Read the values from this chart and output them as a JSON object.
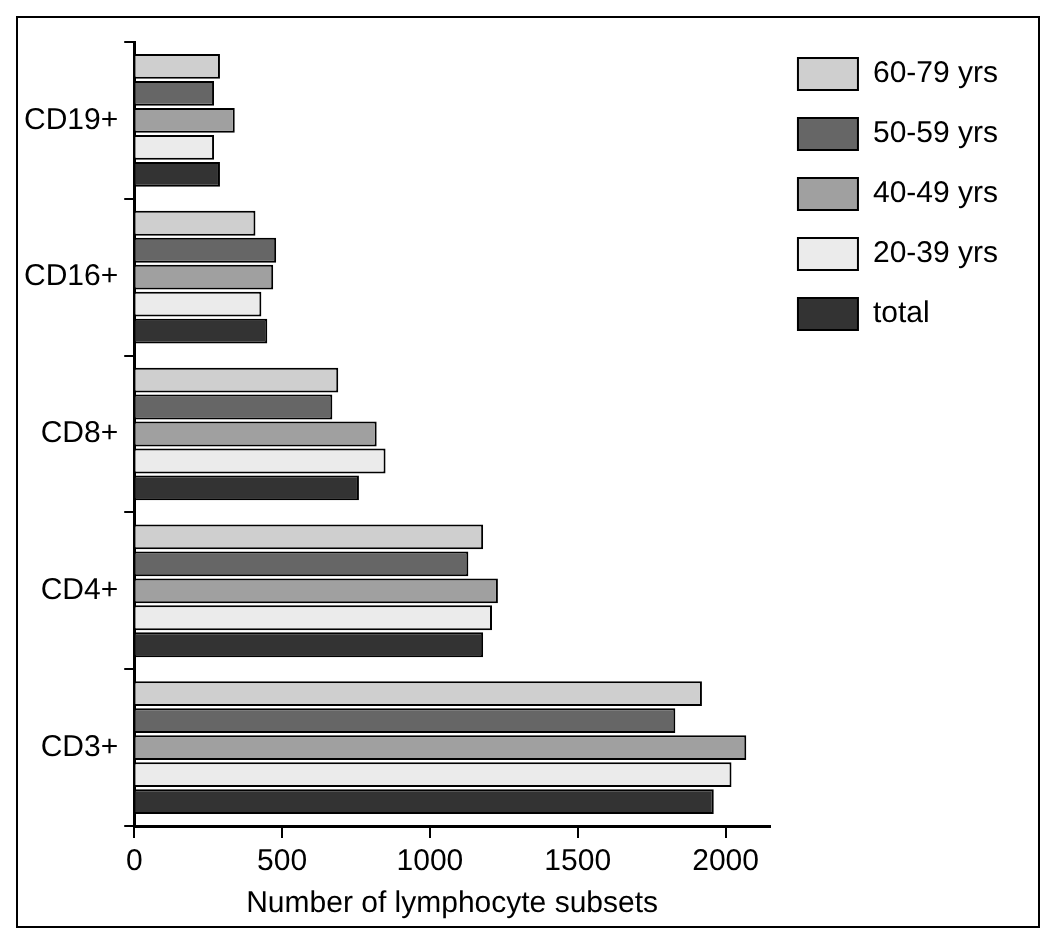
{
  "chart_data": {
    "type": "bar",
    "orientation": "horizontal",
    "xlabel": "Number of lymphocyte subsets",
    "categories": [
      "CD19+",
      "CD16+",
      "CD8+",
      "CD4+",
      "CD3+"
    ],
    "series": [
      {
        "name": "60-79 yrs",
        "color": "#cfcfcf",
        "values": [
          290,
          410,
          690,
          1180,
          1920
        ]
      },
      {
        "name": "50-59 yrs",
        "color": "#666666",
        "values": [
          270,
          480,
          670,
          1130,
          1830
        ]
      },
      {
        "name": "40-49 yrs",
        "color": "#a0a0a0",
        "values": [
          340,
          470,
          820,
          1230,
          2070
        ]
      },
      {
        "name": "20-39 yrs",
        "color": "#ebebeb",
        "values": [
          270,
          430,
          850,
          1210,
          2020
        ]
      },
      {
        "name": "total",
        "color": "#333333",
        "values": [
          290,
          450,
          760,
          1180,
          1960
        ]
      }
    ],
    "xlim": [
      0,
      2150
    ],
    "xticks": [
      0,
      500,
      1000,
      1500,
      2000
    ],
    "grid": false,
    "legend": "top right"
  }
}
